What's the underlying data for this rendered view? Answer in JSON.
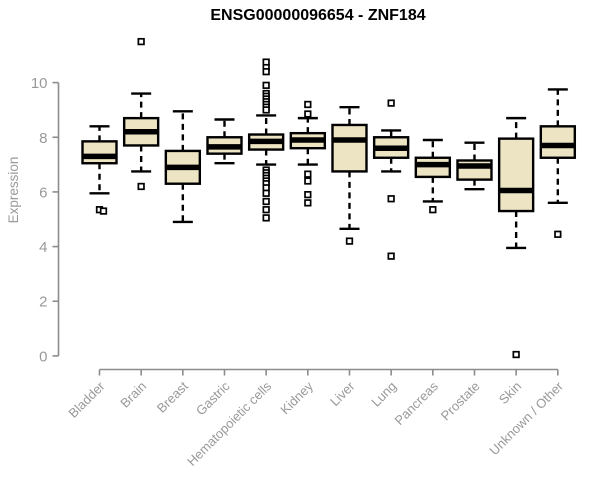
{
  "chart_data": {
    "type": "box",
    "title": "ENSG00000096654 - ZNF184",
    "ylabel": "Expression",
    "xlabel": "",
    "ylim": [
      0,
      10
    ],
    "yticks": [
      0,
      2,
      4,
      6,
      8,
      10
    ],
    "grid": false,
    "legend": false,
    "categories": [
      "Bladder",
      "Brain",
      "Breast",
      "Gastric",
      "Hematopoietic cells",
      "Kidney",
      "Liver",
      "Lung",
      "Pancreas",
      "Prostate",
      "Skin",
      "Unknown / Other"
    ],
    "series": [
      {
        "category": "Bladder",
        "whisker_low": 5.95,
        "q1": 7.05,
        "median": 7.3,
        "q3": 7.85,
        "whisker_high": 8.4,
        "outliers": [
          5.35,
          5.3
        ]
      },
      {
        "category": "Brain",
        "whisker_low": 6.75,
        "q1": 7.7,
        "median": 8.2,
        "q3": 8.7,
        "whisker_high": 9.6,
        "outliers": [
          11.5,
          6.2
        ]
      },
      {
        "category": "Breast",
        "whisker_low": 4.9,
        "q1": 6.3,
        "median": 6.9,
        "q3": 7.5,
        "whisker_high": 8.95,
        "outliers": []
      },
      {
        "category": "Gastric",
        "whisker_low": 7.05,
        "q1": 7.4,
        "median": 7.65,
        "q3": 8.0,
        "whisker_high": 8.65,
        "outliers": []
      },
      {
        "category": "Hematopoietic cells",
        "whisker_low": 7.0,
        "q1": 7.55,
        "median": 7.85,
        "q3": 8.1,
        "whisker_high": 8.8,
        "outliers": [
          10.75,
          10.55,
          10.4,
          9.9,
          9.6,
          9.5,
          9.4,
          9.3,
          9.2,
          9.1,
          9.0,
          6.8,
          6.7,
          6.6,
          6.5,
          6.4,
          6.3,
          6.15,
          5.95,
          5.65,
          5.35,
          5.05
        ]
      },
      {
        "category": "Kidney",
        "whisker_low": 7.0,
        "q1": 7.6,
        "median": 7.9,
        "q3": 8.15,
        "whisker_high": 8.7,
        "outliers": [
          9.2,
          8.85,
          6.65,
          6.4,
          5.9,
          5.6
        ]
      },
      {
        "category": "Liver",
        "whisker_low": 4.65,
        "q1": 6.75,
        "median": 7.9,
        "q3": 8.45,
        "whisker_high": 9.1,
        "outliers": [
          4.2
        ]
      },
      {
        "category": "Lung",
        "whisker_low": 6.75,
        "q1": 7.25,
        "median": 7.6,
        "q3": 8.0,
        "whisker_high": 8.25,
        "outliers": [
          9.25,
          5.75,
          3.65
        ]
      },
      {
        "category": "Pancreas",
        "whisker_low": 5.65,
        "q1": 6.55,
        "median": 7.0,
        "q3": 7.25,
        "whisker_high": 7.9,
        "outliers": [
          5.35
        ]
      },
      {
        "category": "Prostate",
        "whisker_low": 6.1,
        "q1": 6.45,
        "median": 6.95,
        "q3": 7.15,
        "whisker_high": 7.8,
        "outliers": []
      },
      {
        "category": "Skin",
        "whisker_low": 3.95,
        "q1": 5.3,
        "median": 6.05,
        "q3": 7.95,
        "whisker_high": 8.7,
        "outliers": [
          0.05
        ]
      },
      {
        "category": "Unknown / Other",
        "whisker_low": 5.6,
        "q1": 7.25,
        "median": 7.7,
        "q3": 8.4,
        "whisker_high": 9.75,
        "outliers": [
          4.45
        ]
      }
    ],
    "colors": {
      "box_fill": "#ece4c3",
      "box_border": "#000000",
      "axis": "#8c8c8c",
      "axis_text": "#999999",
      "title": "#000000",
      "background": "#ffffff"
    }
  }
}
